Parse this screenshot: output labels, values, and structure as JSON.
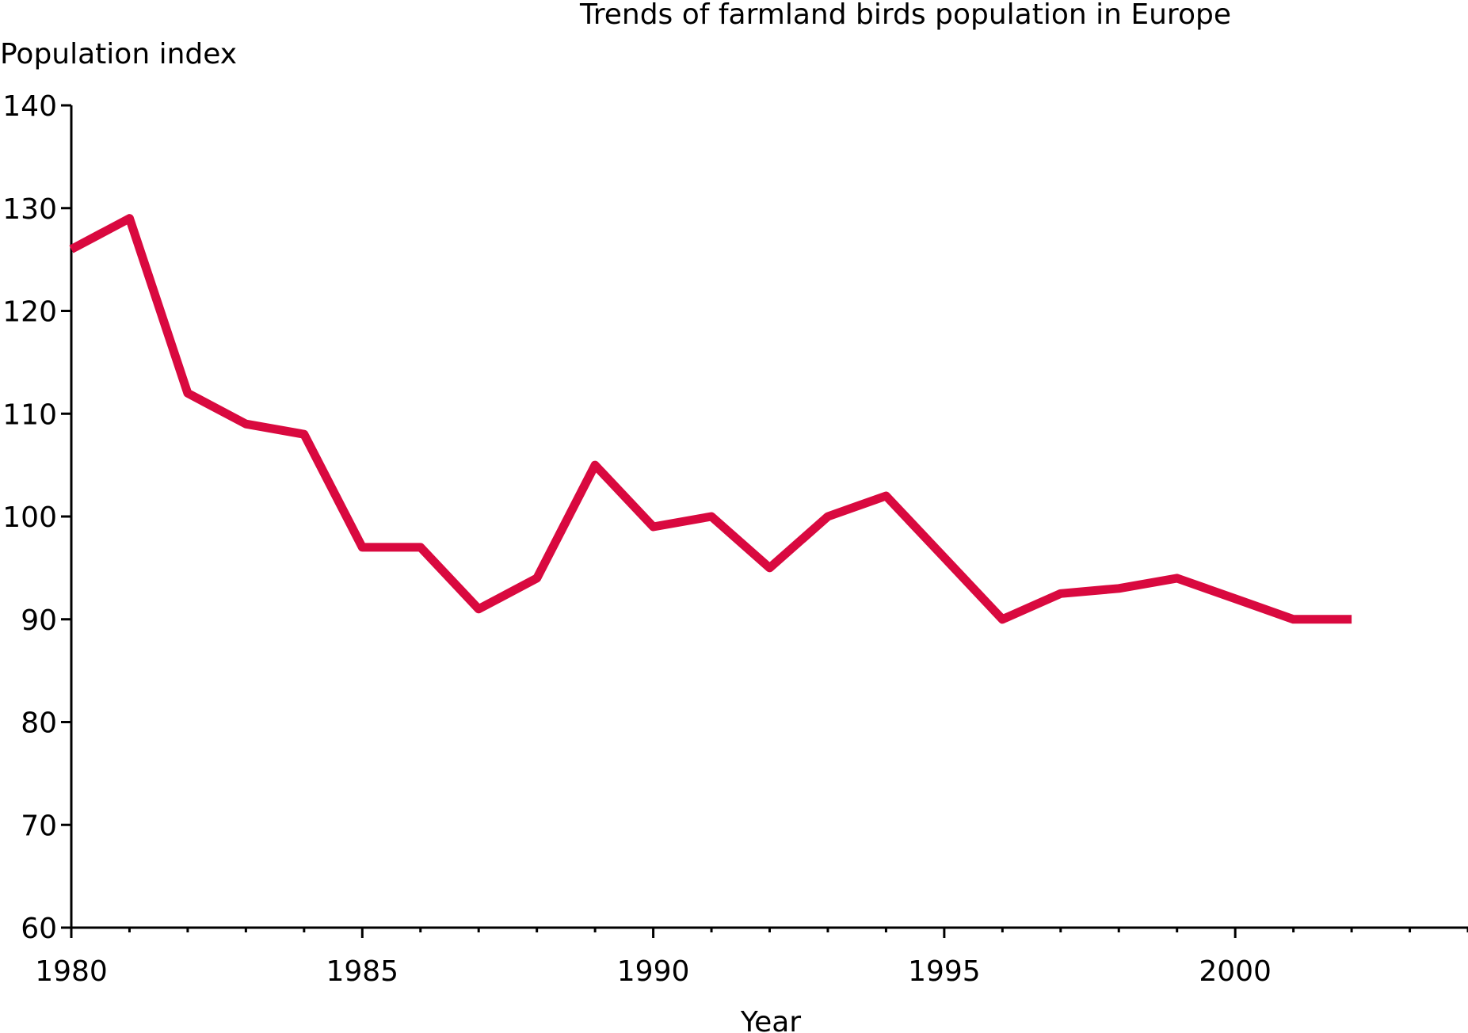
{
  "chart_data": {
    "type": "line",
    "title": "Trends of farmland birds population in Europe",
    "xlabel": "Year",
    "ylabel": "Population index",
    "xlim": [
      1980,
      2004
    ],
    "ylim": [
      60,
      140
    ],
    "x_ticks": [
      1980,
      1985,
      1990,
      1995,
      2000
    ],
    "y_ticks": [
      60,
      70,
      80,
      90,
      100,
      110,
      120,
      130,
      140
    ],
    "grid": false,
    "legend": "none",
    "series_color": "#d9093f",
    "x": [
      1980,
      1981,
      1982,
      1983,
      1984,
      1985,
      1986,
      1987,
      1988,
      1989,
      1990,
      1991,
      1992,
      1993,
      1994,
      1995,
      1996,
      1997,
      1998,
      1999,
      2000,
      2001,
      2002
    ],
    "values": [
      126,
      129,
      112,
      109,
      108,
      97,
      97,
      91,
      94,
      105,
      99,
      100,
      95,
      100,
      102,
      96,
      90,
      92.5,
      93,
      94,
      92,
      90,
      90
    ]
  }
}
